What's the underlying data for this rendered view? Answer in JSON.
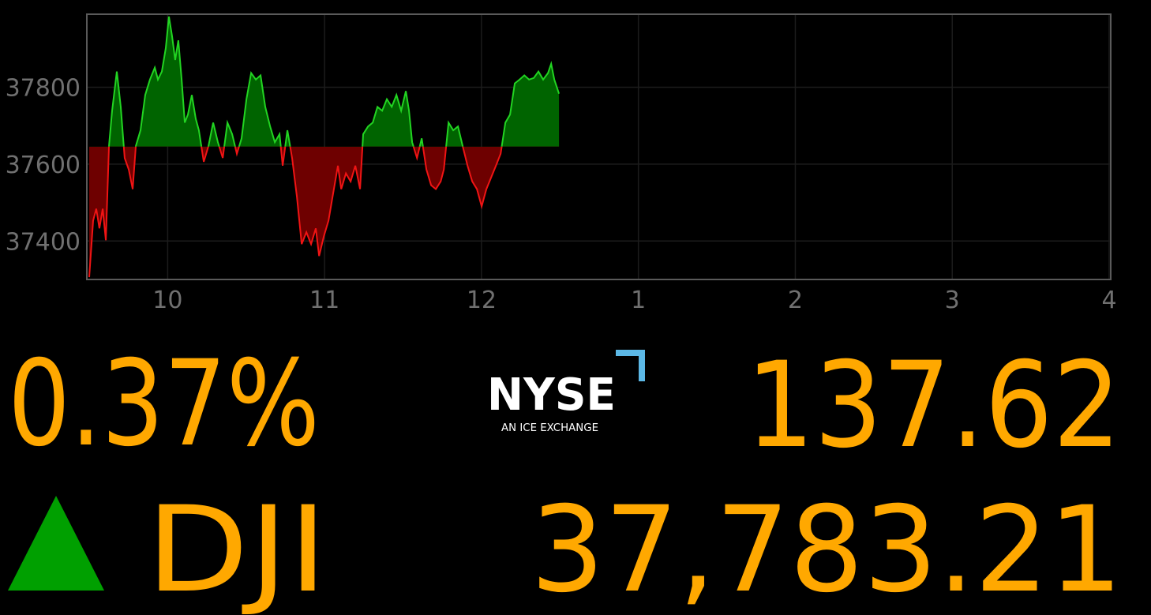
{
  "chart_data": {
    "type": "line",
    "x": [
      9.5,
      9.525,
      9.545,
      9.565,
      9.586,
      9.606,
      9.626,
      9.646,
      9.676,
      9.701,
      9.726,
      9.752,
      9.777,
      9.797,
      9.827,
      9.857,
      9.887,
      9.918,
      9.938,
      9.963,
      9.988,
      10.008,
      10.028,
      10.048,
      10.068,
      10.089,
      10.109,
      10.129,
      10.154,
      10.179,
      10.199,
      10.23,
      10.26,
      10.29,
      10.32,
      10.351,
      10.381,
      10.411,
      10.441,
      10.471,
      10.502,
      10.532,
      10.562,
      10.592,
      10.622,
      10.653,
      10.683,
      10.713,
      10.733,
      10.763,
      10.793,
      10.824,
      10.854,
      10.884,
      10.914,
      10.944,
      10.965,
      10.995,
      11.025,
      11.055,
      11.085,
      11.106,
      11.136,
      11.166,
      11.196,
      11.226,
      11.246,
      11.277,
      11.307,
      11.337,
      11.367,
      11.397,
      11.428,
      11.458,
      11.488,
      11.518,
      11.538,
      11.558,
      11.589,
      11.619,
      11.649,
      11.679,
      11.709,
      11.74,
      11.76,
      11.79,
      11.82,
      11.85,
      11.88,
      11.911,
      11.941,
      11.971,
      12.001,
      12.031,
      12.061,
      12.092,
      12.122,
      12.152,
      12.182,
      12.212,
      12.243,
      12.273,
      12.303,
      12.333,
      12.363,
      12.393,
      12.424,
      12.444,
      12.464,
      12.494
    ],
    "values": [
      37306,
      37453,
      37484,
      37433,
      37484,
      37402,
      37647,
      37739,
      37841,
      37749,
      37616,
      37586,
      37535,
      37647,
      37688,
      37780,
      37820,
      37851,
      37820,
      37841,
      37902,
      37984,
      37933,
      37871,
      37922,
      37820,
      37708,
      37729,
      37780,
      37718,
      37688,
      37606,
      37647,
      37708,
      37657,
      37616,
      37708,
      37678,
      37627,
      37667,
      37769,
      37837,
      37820,
      37831,
      37749,
      37698,
      37657,
      37678,
      37596,
      37688,
      37616,
      37514,
      37392,
      37423,
      37392,
      37433,
      37361,
      37412,
      37453,
      37525,
      37596,
      37535,
      37576,
      37555,
      37596,
      37535,
      37678,
      37698,
      37708,
      37749,
      37739,
      37769,
      37749,
      37780,
      37739,
      37790,
      37739,
      37657,
      37616,
      37667,
      37586,
      37545,
      37535,
      37555,
      37586,
      37708,
      37688,
      37698,
      37647,
      37596,
      37555,
      37535,
      37490,
      37535,
      37565,
      37596,
      37627,
      37708,
      37729,
      37810,
      37820,
      37831,
      37820,
      37824,
      37841,
      37820,
      37837,
      37861,
      37820,
      37783.21
    ],
    "baseline": 37645.59,
    "up_color": "#22d422",
    "down_color": "#f01414",
    "up_fill": "#006400",
    "down_fill": "#6e0000",
    "xlim": [
      9.5,
      16
    ],
    "xticks": [
      10,
      11,
      12,
      {
        "value": 13,
        "label": "1"
      },
      {
        "value": 14,
        "label": "2"
      },
      {
        "value": 15,
        "label": "3"
      },
      {
        "value": 16,
        "label": "4"
      }
    ],
    "ylim": [
      37300,
      37990
    ],
    "yticks": [
      37400,
      37600,
      37800
    ],
    "grid": true
  },
  "ticker": {
    "change_percent": "0.37%",
    "change": "137.62",
    "symbol": "DJI",
    "last": "37,783.21"
  },
  "logo": {
    "name": "NYSE",
    "tagline": "AN ICE EXCHANGE"
  }
}
